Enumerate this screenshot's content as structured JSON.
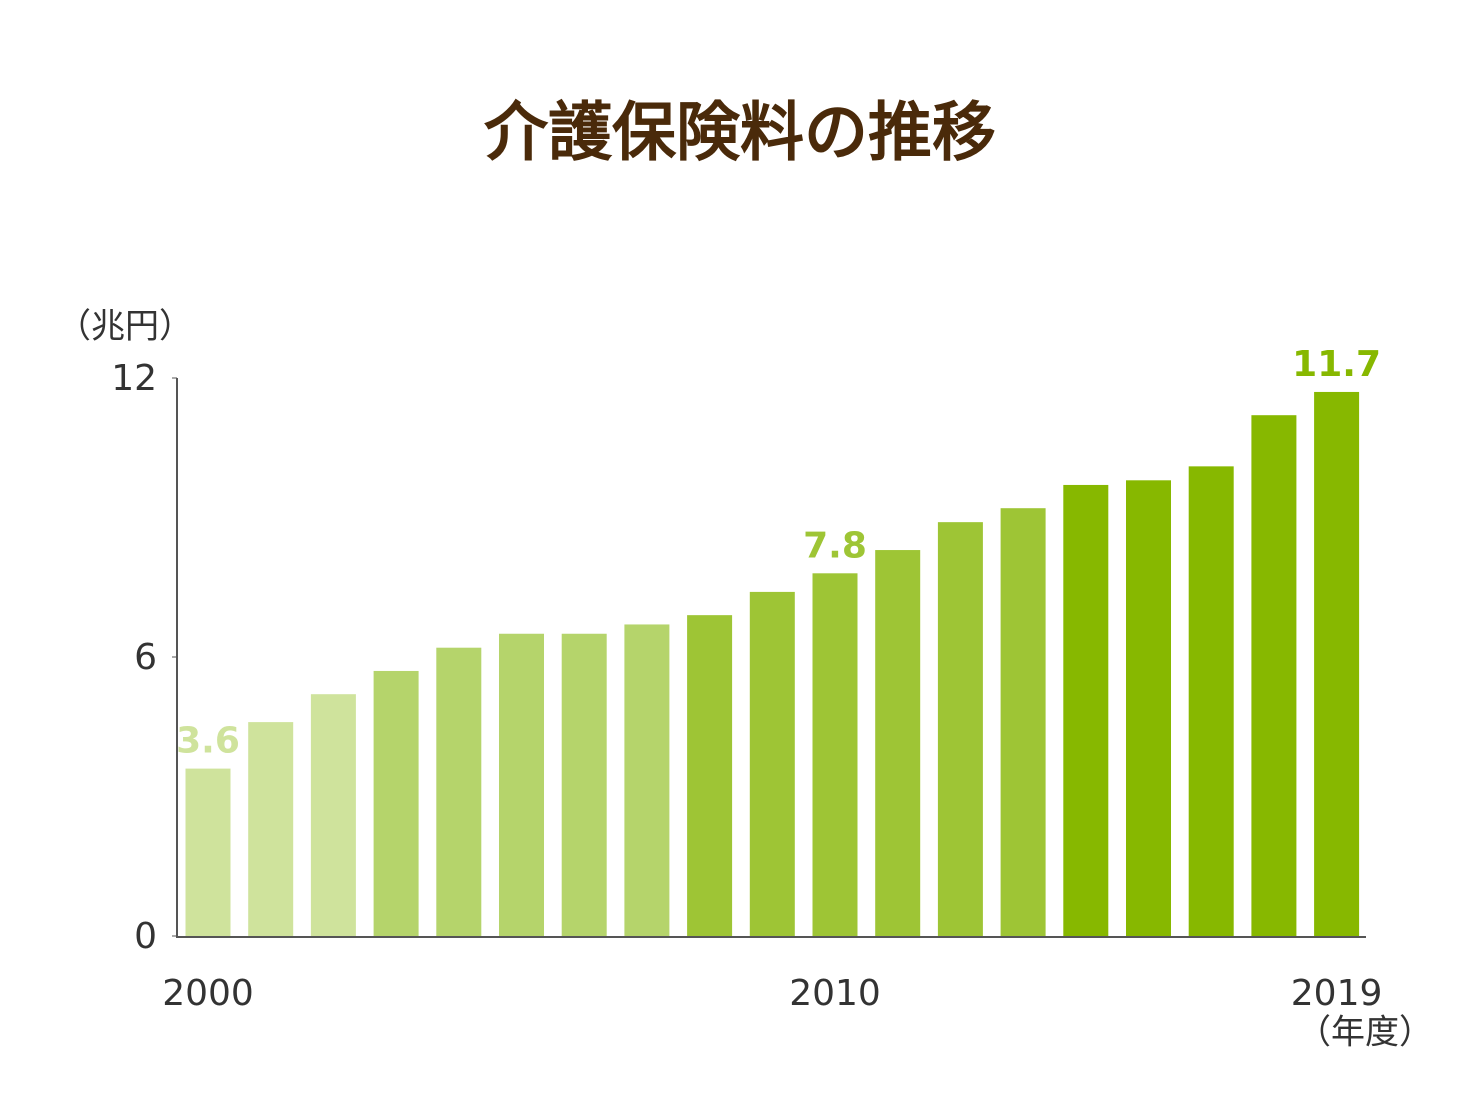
{
  "chart_data": {
    "type": "bar",
    "title": "介護保険料の推移",
    "y_axis_label": "（兆円）",
    "x_axis_label": "（年度）",
    "categories": [
      "2000",
      null,
      null,
      null,
      null,
      null,
      null,
      null,
      null,
      null,
      "2010",
      null,
      null,
      null,
      null,
      null,
      null,
      null,
      "2019"
    ],
    "values": [
      3.6,
      4.6,
      5.2,
      5.7,
      6.2,
      6.5,
      6.5,
      6.7,
      6.9,
      7.4,
      7.8,
      8.3,
      8.9,
      9.2,
      9.7,
      9.8,
      10.1,
      11.2,
      11.7
    ],
    "colors": [
      "#cfe39c",
      "#cfe39c",
      "#cfe39c",
      "#b5d46b",
      "#b5d46b",
      "#b5d46b",
      "#b5d46b",
      "#b5d46b",
      "#9ec535",
      "#9ec535",
      "#9ec535",
      "#9ec535",
      "#9ec535",
      "#9ec535",
      "#87b800",
      "#87b800",
      "#87b800",
      "#87b800",
      "#87b800"
    ],
    "labeled": [
      0,
      10,
      18
    ],
    "ylim": [
      0,
      12
    ],
    "yticks": [
      0,
      6,
      12
    ],
    "grid": false
  }
}
